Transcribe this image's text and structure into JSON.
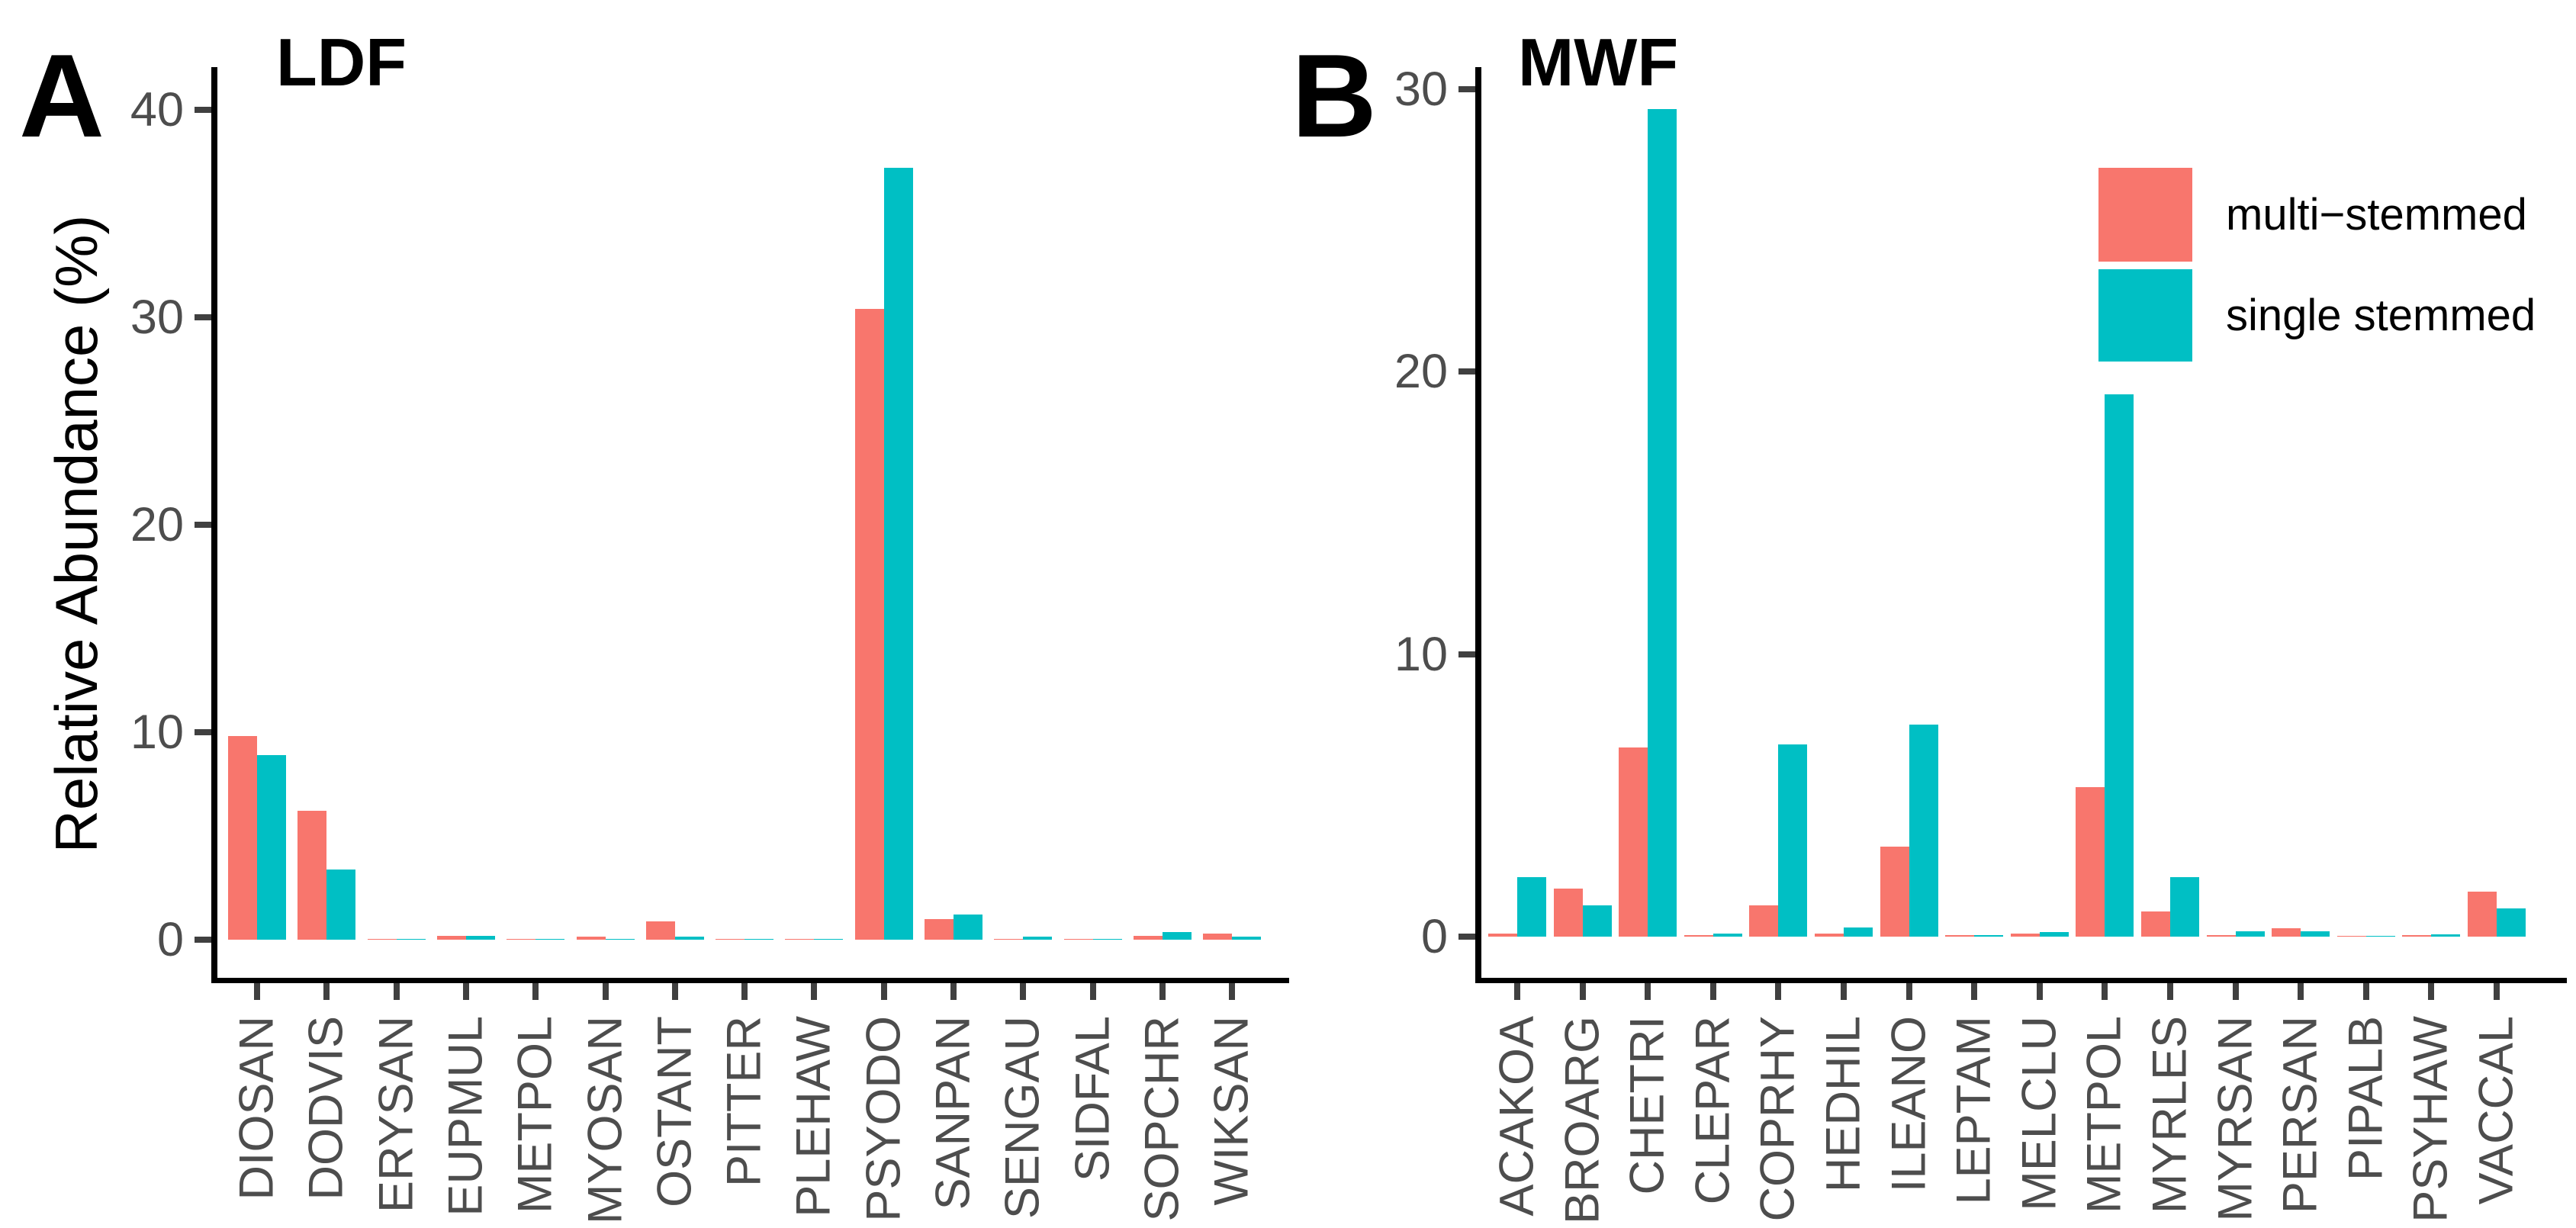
{
  "figure": {
    "ylabel": "Relative Abundance (%)",
    "colors": {
      "multi_stemmed": "#F8766D",
      "single_stemmed": "#00BFC4",
      "axis_line": "#000000",
      "tick_mark": "#404040",
      "tick_label": "#4D4D4D"
    }
  },
  "legend": {
    "position": "inside-top-right-of-panel-B",
    "items": [
      {
        "key": "multi",
        "label": "multi−stemmed",
        "color": "#F8766D"
      },
      {
        "key": "single",
        "label": "single stemmed",
        "color": "#00BFC4"
      }
    ]
  },
  "chart_data": [
    {
      "type": "bar",
      "tag": "A",
      "title": "LDF",
      "xlabel": "",
      "ylabel": "Relative Abundance (%)",
      "ylim": [
        0,
        40
      ],
      "yticks": [
        0,
        10,
        20,
        30,
        40
      ],
      "grid": false,
      "legend_position": "none",
      "categories": [
        "DIOSAN",
        "DODVIS",
        "ERYSAN",
        "EUPMUL",
        "METPOL",
        "MYOSAN",
        "OSTANT",
        "PITTER",
        "PLEHAW",
        "PSYODO",
        "SANPAN",
        "SENGAU",
        "SIDFAL",
        "SOPCHR",
        "WIKSAN"
      ],
      "series": [
        {
          "name": "multi-stemmed",
          "values": [
            9.8,
            6.2,
            0.02,
            0.2,
            0.03,
            0.15,
            0.9,
            0.02,
            0.02,
            30.4,
            1.0,
            0.02,
            0.02,
            0.2,
            0.3
          ]
        },
        {
          "name": "single stemmed",
          "values": [
            8.9,
            3.4,
            0.02,
            0.2,
            0.02,
            0.02,
            0.15,
            0.02,
            0.02,
            37.2,
            1.2,
            0.15,
            0.02,
            0.35,
            0.15
          ]
        }
      ]
    },
    {
      "type": "bar",
      "tag": "B",
      "title": "MWF",
      "xlabel": "",
      "ylabel": "",
      "ylim": [
        0,
        30
      ],
      "yticks": [
        0,
        10,
        20,
        30
      ],
      "grid": false,
      "legend_position": "top-right",
      "categories": [
        "ACAKOA",
        "BROARG",
        "CHETRI",
        "CLEPAR",
        "COPRHY",
        "HEDHIL",
        "ILEANO",
        "LEPTAM",
        "MELCLU",
        "METPOL",
        "MYRLES",
        "MYRSAN",
        "PERSAN",
        "PIPALB",
        "PSYHAW",
        "VACCAL"
      ],
      "series": [
        {
          "name": "multi-stemmed",
          "values": [
            0.1,
            1.7,
            6.7,
            0.05,
            1.1,
            0.1,
            3.2,
            0.05,
            0.1,
            5.3,
            0.9,
            0.05,
            0.3,
            0.04,
            0.05,
            1.6
          ]
        },
        {
          "name": "single stemmed",
          "values": [
            2.1,
            1.1,
            29.3,
            0.12,
            6.8,
            0.33,
            7.5,
            0.05,
            0.17,
            19.2,
            2.1,
            0.18,
            0.2,
            0.04,
            0.08,
            1.0
          ]
        }
      ]
    }
  ]
}
